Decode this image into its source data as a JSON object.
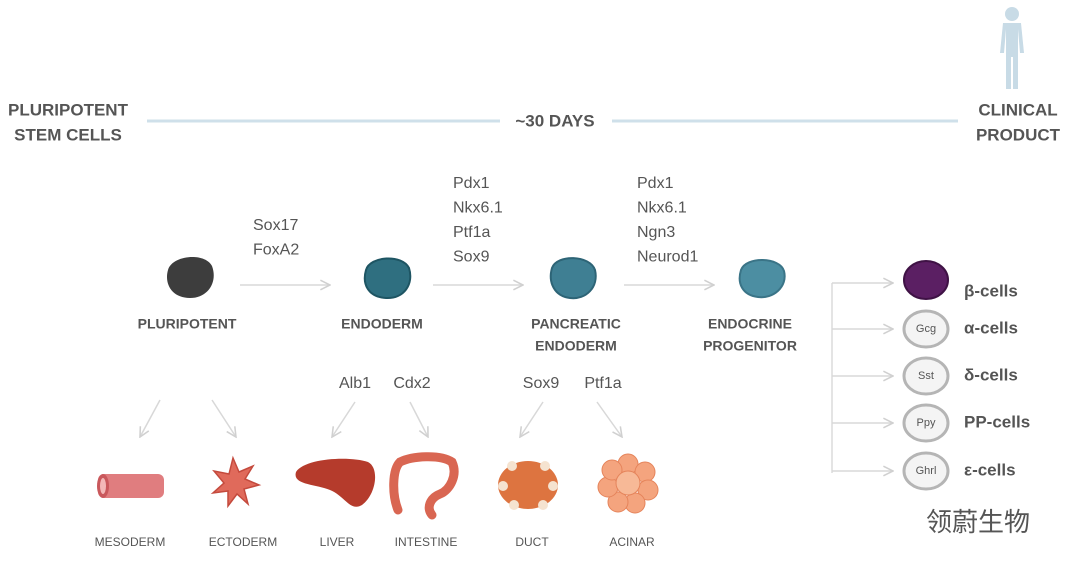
{
  "header": {
    "left_label": [
      "PLURIPOTENT",
      "STEM CELLS"
    ],
    "timeline_label": "~30 DAYS",
    "right_label": [
      "CLINICAL",
      "PRODUCT"
    ]
  },
  "stages": [
    {
      "label": [
        "PLURIPOTENT"
      ]
    },
    {
      "label": [
        "ENDODERM"
      ]
    },
    {
      "label": [
        "PANCREATIC",
        "ENDODERM"
      ]
    },
    {
      "label": [
        "ENDOCRINE",
        "PROGENITOR"
      ]
    }
  ],
  "transitions": [
    [
      "Sox17",
      "FoxA2"
    ],
    [
      "Pdx1",
      "Nkx6.1",
      "Ptf1a",
      "Sox9"
    ],
    [
      "Pdx1",
      "Nkx6.1",
      "Ngn3",
      "Neurod1"
    ]
  ],
  "branch_markers": [
    "Alb1",
    "Cdx2",
    "Sox9",
    "Ptf1a"
  ],
  "derived_tissues": [
    "MESODERM",
    "ECTODERM",
    "LIVER",
    "INTESTINE",
    "DUCT",
    "ACINAR"
  ],
  "endocrine_cells": [
    {
      "name": "β-cells"
    },
    {
      "name": "α-cells",
      "marker": "Gcg"
    },
    {
      "name": "δ-cells",
      "marker": "Sst"
    },
    {
      "name": "PP-cells",
      "marker": "Ppy"
    },
    {
      "name": "ε-cells",
      "marker": "Ghrl"
    }
  ],
  "watermark": "领蔚生物"
}
